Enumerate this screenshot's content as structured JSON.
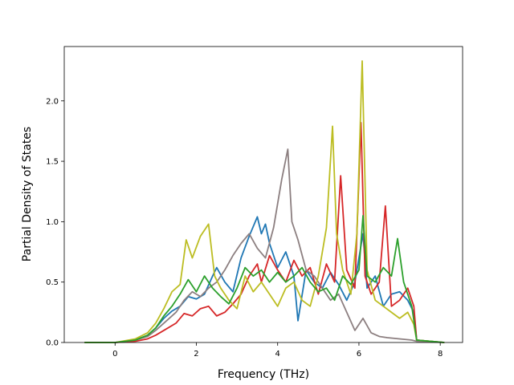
{
  "chart_data": {
    "type": "line",
    "title": "",
    "xlabel": "Frequency (THz)",
    "ylabel": "Partial Density of States",
    "xlim": [
      -1.25,
      8.55
    ],
    "ylim": [
      0,
      2.45
    ],
    "xticks": [
      0,
      2,
      4,
      6,
      8
    ],
    "xtick_labels": [
      "0",
      "2",
      "4",
      "6",
      "8"
    ],
    "yticks": [
      0,
      0.5,
      1.0,
      1.5,
      2.0
    ],
    "ytick_labels": [
      "0.0",
      "0.5",
      "1.0",
      "1.5",
      "2.0"
    ],
    "grid": false,
    "legend": "none",
    "series": [
      {
        "color": "#1f77b4",
        "points": [
          [
            -0.75,
            0
          ],
          [
            0,
            0
          ],
          [
            0.5,
            0.02
          ],
          [
            0.8,
            0.06
          ],
          [
            1.0,
            0.12
          ],
          [
            1.2,
            0.2
          ],
          [
            1.4,
            0.26
          ],
          [
            1.6,
            0.3
          ],
          [
            1.8,
            0.38
          ],
          [
            2.0,
            0.36
          ],
          [
            2.2,
            0.4
          ],
          [
            2.4,
            0.55
          ],
          [
            2.5,
            0.62
          ],
          [
            2.7,
            0.5
          ],
          [
            2.9,
            0.42
          ],
          [
            3.1,
            0.7
          ],
          [
            3.3,
            0.88
          ],
          [
            3.5,
            1.04
          ],
          [
            3.6,
            0.9
          ],
          [
            3.7,
            0.98
          ],
          [
            3.8,
            0.82
          ],
          [
            4.0,
            0.62
          ],
          [
            4.2,
            0.75
          ],
          [
            4.4,
            0.55
          ],
          [
            4.5,
            0.18
          ],
          [
            4.7,
            0.6
          ],
          [
            4.9,
            0.5
          ],
          [
            5.1,
            0.45
          ],
          [
            5.3,
            0.58
          ],
          [
            5.5,
            0.48
          ],
          [
            5.7,
            0.35
          ],
          [
            5.9,
            0.5
          ],
          [
            6.1,
            0.9
          ],
          [
            6.2,
            0.45
          ],
          [
            6.4,
            0.55
          ],
          [
            6.6,
            0.3
          ],
          [
            6.8,
            0.4
          ],
          [
            7.0,
            0.42
          ],
          [
            7.2,
            0.35
          ],
          [
            7.35,
            0.25
          ],
          [
            7.42,
            0.02
          ],
          [
            8.1,
            0
          ]
        ]
      },
      {
        "color": "#d62728",
        "points": [
          [
            -0.75,
            0
          ],
          [
            0,
            0
          ],
          [
            0.5,
            0.01
          ],
          [
            0.8,
            0.03
          ],
          [
            1.0,
            0.06
          ],
          [
            1.2,
            0.1
          ],
          [
            1.5,
            0.16
          ],
          [
            1.7,
            0.24
          ],
          [
            1.9,
            0.22
          ],
          [
            2.1,
            0.28
          ],
          [
            2.3,
            0.3
          ],
          [
            2.5,
            0.22
          ],
          [
            2.7,
            0.25
          ],
          [
            2.9,
            0.32
          ],
          [
            3.1,
            0.4
          ],
          [
            3.3,
            0.55
          ],
          [
            3.5,
            0.65
          ],
          [
            3.6,
            0.5
          ],
          [
            3.8,
            0.72
          ],
          [
            4.0,
            0.6
          ],
          [
            4.2,
            0.5
          ],
          [
            4.4,
            0.68
          ],
          [
            4.6,
            0.55
          ],
          [
            4.8,
            0.62
          ],
          [
            5.0,
            0.4
          ],
          [
            5.2,
            0.65
          ],
          [
            5.4,
            0.5
          ],
          [
            5.55,
            1.38
          ],
          [
            5.7,
            0.6
          ],
          [
            5.9,
            0.45
          ],
          [
            6.05,
            1.82
          ],
          [
            6.15,
            0.55
          ],
          [
            6.3,
            0.4
          ],
          [
            6.5,
            0.5
          ],
          [
            6.65,
            1.13
          ],
          [
            6.8,
            0.3
          ],
          [
            7.0,
            0.35
          ],
          [
            7.2,
            0.45
          ],
          [
            7.35,
            0.3
          ],
          [
            7.42,
            0.02
          ],
          [
            8.1,
            0
          ]
        ]
      },
      {
        "color": "#8c7f80",
        "points": [
          [
            -0.75,
            0
          ],
          [
            0,
            0
          ],
          [
            0.5,
            0.02
          ],
          [
            0.8,
            0.05
          ],
          [
            1.0,
            0.1
          ],
          [
            1.2,
            0.16
          ],
          [
            1.5,
            0.25
          ],
          [
            1.7,
            0.35
          ],
          [
            1.9,
            0.42
          ],
          [
            2.1,
            0.38
          ],
          [
            2.3,
            0.45
          ],
          [
            2.5,
            0.5
          ],
          [
            2.7,
            0.6
          ],
          [
            2.9,
            0.72
          ],
          [
            3.1,
            0.82
          ],
          [
            3.3,
            0.9
          ],
          [
            3.5,
            0.78
          ],
          [
            3.7,
            0.7
          ],
          [
            3.9,
            0.95
          ],
          [
            4.1,
            1.35
          ],
          [
            4.25,
            1.6
          ],
          [
            4.35,
            1.0
          ],
          [
            4.5,
            0.85
          ],
          [
            4.7,
            0.6
          ],
          [
            4.9,
            0.55
          ],
          [
            5.1,
            0.45
          ],
          [
            5.3,
            0.35
          ],
          [
            5.5,
            0.4
          ],
          [
            5.7,
            0.25
          ],
          [
            5.9,
            0.1
          ],
          [
            6.1,
            0.2
          ],
          [
            6.3,
            0.08
          ],
          [
            6.5,
            0.05
          ],
          [
            6.7,
            0.04
          ],
          [
            7.0,
            0.03
          ],
          [
            7.3,
            0.02
          ],
          [
            7.42,
            0.01
          ],
          [
            8.1,
            0
          ]
        ]
      },
      {
        "color": "#bcbd22",
        "points": [
          [
            -0.75,
            0
          ],
          [
            0,
            0
          ],
          [
            0.5,
            0.03
          ],
          [
            0.8,
            0.08
          ],
          [
            1.0,
            0.16
          ],
          [
            1.2,
            0.28
          ],
          [
            1.4,
            0.42
          ],
          [
            1.6,
            0.48
          ],
          [
            1.75,
            0.85
          ],
          [
            1.9,
            0.7
          ],
          [
            2.1,
            0.88
          ],
          [
            2.3,
            0.98
          ],
          [
            2.45,
            0.55
          ],
          [
            2.6,
            0.45
          ],
          [
            2.8,
            0.35
          ],
          [
            3.0,
            0.28
          ],
          [
            3.2,
            0.55
          ],
          [
            3.4,
            0.42
          ],
          [
            3.6,
            0.5
          ],
          [
            3.8,
            0.4
          ],
          [
            4.0,
            0.3
          ],
          [
            4.2,
            0.45
          ],
          [
            4.4,
            0.5
          ],
          [
            4.6,
            0.35
          ],
          [
            4.8,
            0.3
          ],
          [
            5.0,
            0.55
          ],
          [
            5.2,
            0.95
          ],
          [
            5.35,
            1.79
          ],
          [
            5.45,
            0.9
          ],
          [
            5.6,
            0.6
          ],
          [
            5.8,
            0.4
          ],
          [
            5.95,
            0.9
          ],
          [
            6.08,
            2.33
          ],
          [
            6.2,
            0.6
          ],
          [
            6.4,
            0.35
          ],
          [
            6.6,
            0.3
          ],
          [
            6.8,
            0.25
          ],
          [
            7.0,
            0.2
          ],
          [
            7.2,
            0.25
          ],
          [
            7.35,
            0.15
          ],
          [
            7.42,
            0.02
          ],
          [
            8.1,
            0
          ]
        ]
      },
      {
        "color": "#2ca02c",
        "points": [
          [
            -0.75,
            0
          ],
          [
            0,
            0
          ],
          [
            0.5,
            0.02
          ],
          [
            0.8,
            0.06
          ],
          [
            1.0,
            0.12
          ],
          [
            1.2,
            0.22
          ],
          [
            1.4,
            0.3
          ],
          [
            1.6,
            0.4
          ],
          [
            1.8,
            0.52
          ],
          [
            2.0,
            0.42
          ],
          [
            2.2,
            0.55
          ],
          [
            2.4,
            0.45
          ],
          [
            2.6,
            0.38
          ],
          [
            2.8,
            0.32
          ],
          [
            3.0,
            0.45
          ],
          [
            3.2,
            0.62
          ],
          [
            3.4,
            0.55
          ],
          [
            3.6,
            0.6
          ],
          [
            3.8,
            0.5
          ],
          [
            4.0,
            0.58
          ],
          [
            4.2,
            0.5
          ],
          [
            4.4,
            0.55
          ],
          [
            4.6,
            0.62
          ],
          [
            4.8,
            0.5
          ],
          [
            5.0,
            0.42
          ],
          [
            5.2,
            0.45
          ],
          [
            5.4,
            0.35
          ],
          [
            5.6,
            0.55
          ],
          [
            5.8,
            0.48
          ],
          [
            6.0,
            0.6
          ],
          [
            6.1,
            1.05
          ],
          [
            6.2,
            0.55
          ],
          [
            6.4,
            0.5
          ],
          [
            6.6,
            0.62
          ],
          [
            6.8,
            0.55
          ],
          [
            6.95,
            0.86
          ],
          [
            7.1,
            0.5
          ],
          [
            7.3,
            0.3
          ],
          [
            7.42,
            0.02
          ],
          [
            8.1,
            0
          ]
        ]
      }
    ]
  }
}
